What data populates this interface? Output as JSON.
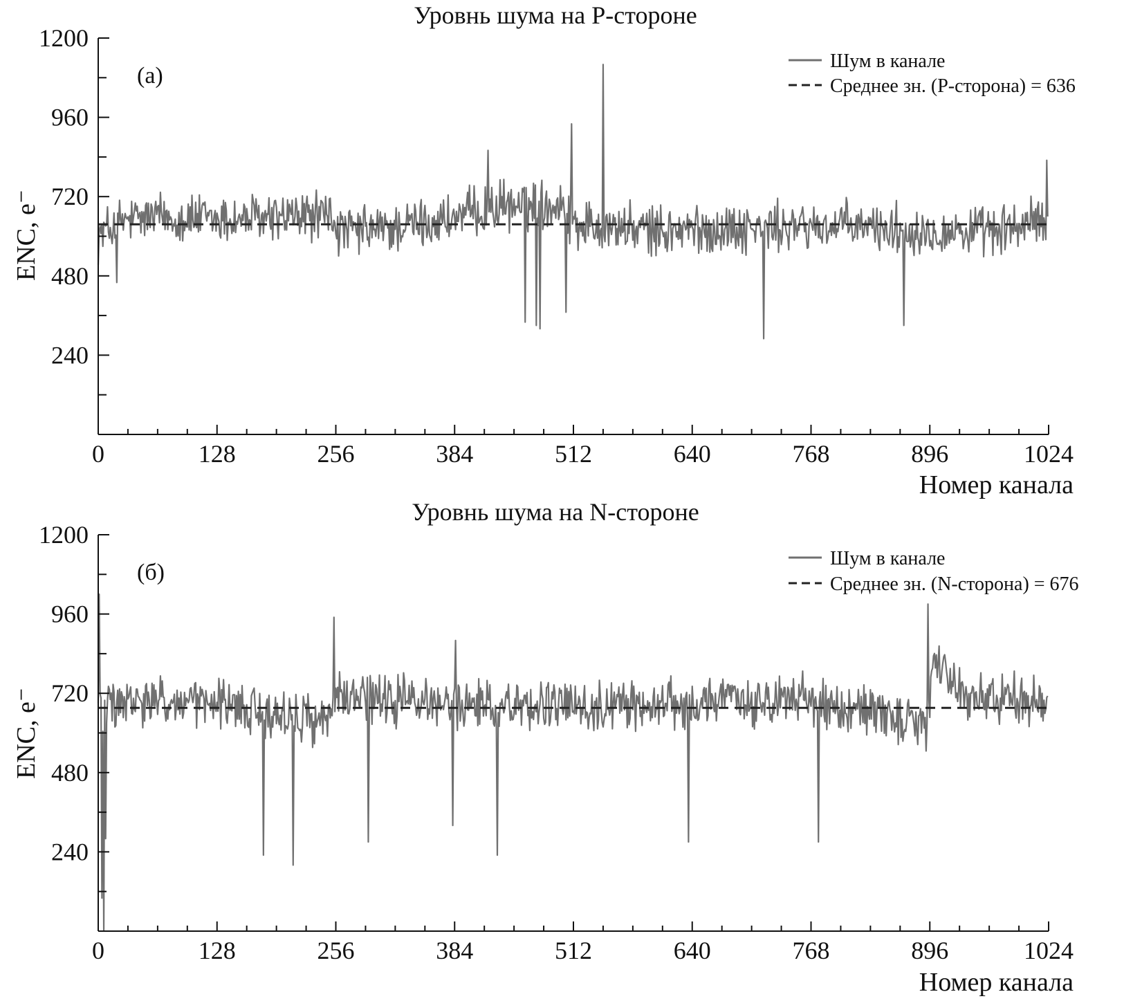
{
  "chart_data": [
    {
      "type": "line",
      "panel": "(a)",
      "title": "Уровнь шума на P-стороне",
      "xlabel": "Номер канала",
      "ylabel": "ENC, e⁻",
      "xlim": [
        0,
        1024
      ],
      "ylim": [
        0,
        1200
      ],
      "x_ticks": [
        "0",
        "128",
        "256",
        "384",
        "512",
        "640",
        "768",
        "896",
        "1024"
      ],
      "y_ticks": [
        "240",
        "480",
        "720",
        "960",
        "1200"
      ],
      "legend_position": "top-right",
      "series": [
        {
          "name": "Шум в канале",
          "style": "solid",
          "color": "#707070",
          "baseline_profile": [
            [
              0,
              600
            ],
            [
              20,
              640
            ],
            [
              64,
              660
            ],
            [
              128,
              650
            ],
            [
              192,
              655
            ],
            [
              250,
              665
            ],
            [
              260,
              610
            ],
            [
              320,
              625
            ],
            [
              384,
              655
            ],
            [
              430,
              690
            ],
            [
              500,
              700
            ],
            [
              512,
              640
            ],
            [
              600,
              615
            ],
            [
              700,
              625
            ],
            [
              800,
              630
            ],
            [
              880,
              620
            ],
            [
              960,
              610
            ],
            [
              1024,
              650
            ]
          ],
          "outliers": [
            [
              20,
              460
            ],
            [
              420,
              860
            ],
            [
              460,
              340
            ],
            [
              472,
              330
            ],
            [
              476,
              320
            ],
            [
              504,
              370
            ],
            [
              510,
              940
            ],
            [
              544,
              1120
            ],
            [
              717,
              290
            ],
            [
              868,
              330
            ],
            [
              1022,
              830
            ]
          ],
          "noise_amplitude": 60,
          "points": 1024
        },
        {
          "name": "Среднее зн. (P-сторона) = 636",
          "style": "dashed",
          "color": "#222222",
          "value": 636
        }
      ]
    },
    {
      "type": "line",
      "panel": "(б)",
      "title": "Уровнь шума на N-стороне",
      "xlabel": "Номер канала",
      "ylabel": "ENC, e⁻",
      "xlim": [
        0,
        1024
      ],
      "ylim": [
        0,
        1200
      ],
      "x_ticks": [
        "0",
        "128",
        "256",
        "384",
        "512",
        "640",
        "768",
        "896",
        "1024"
      ],
      "y_ticks": [
        "240",
        "480",
        "720",
        "960",
        "1200"
      ],
      "legend_position": "top-right",
      "series": [
        {
          "name": "Шум в канале",
          "style": "solid",
          "color": "#707070",
          "baseline_profile": [
            [
              0,
              680
            ],
            [
              64,
              690
            ],
            [
              128,
              685
            ],
            [
              200,
              650
            ],
            [
              250,
              640
            ],
            [
              256,
              730
            ],
            [
              270,
              700
            ],
            [
              384,
              690
            ],
            [
              512,
              680
            ],
            [
              640,
              690
            ],
            [
              700,
              700
            ],
            [
              768,
              700
            ],
            [
              860,
              650
            ],
            [
              892,
              600
            ],
            [
              900,
              820
            ],
            [
              930,
              720
            ],
            [
              1024,
              690
            ]
          ],
          "outliers": [
            [
              1,
              1020
            ],
            [
              4,
              100
            ],
            [
              6,
              0
            ],
            [
              8,
              280
            ],
            [
              178,
              230
            ],
            [
              210,
              200
            ],
            [
              254,
              950
            ],
            [
              291,
              270
            ],
            [
              382,
              320
            ],
            [
              385,
              880
            ],
            [
              430,
              230
            ],
            [
              636,
              270
            ],
            [
              776,
              270
            ],
            [
              894,
              990
            ]
          ],
          "noise_amplitude": 60,
          "points": 1024
        },
        {
          "name": "Среднее зн. (N-сторона) = 676",
          "style": "dashed",
          "color": "#222222",
          "value": 676
        }
      ]
    }
  ]
}
